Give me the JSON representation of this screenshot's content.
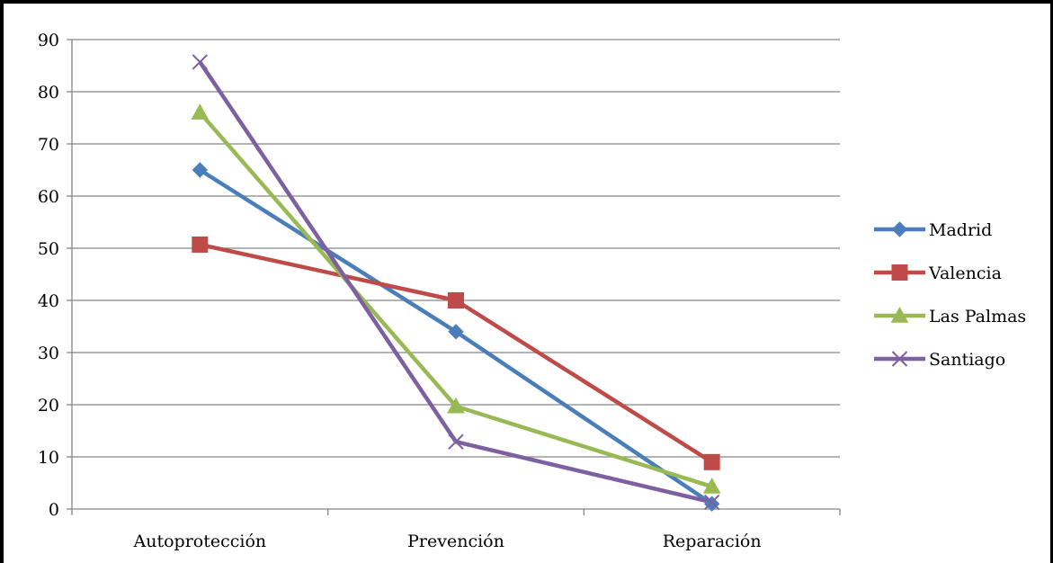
{
  "chart_data": {
    "type": "line",
    "title": "",
    "xlabel": "",
    "ylabel": "",
    "categories": [
      "Autoprotección",
      "Prevención",
      "Reparación"
    ],
    "ylim": [
      0,
      90
    ],
    "yticks": [
      0,
      10,
      20,
      30,
      40,
      50,
      60,
      70,
      80,
      90
    ],
    "grid": true,
    "legend_position": "right",
    "series": [
      {
        "name": "Madrid",
        "values": [
          65,
          34,
          1
        ],
        "color": "#4a7ebb",
        "marker": "diamond"
      },
      {
        "name": "Valencia",
        "values": [
          50.7,
          40,
          9
        ],
        "color": "#be4b48",
        "marker": "square"
      },
      {
        "name": "Las Palmas",
        "values": [
          76,
          19.7,
          4.3
        ],
        "color": "#98b954",
        "marker": "triangle"
      },
      {
        "name": "Santiago",
        "values": [
          85.7,
          12.9,
          1.3
        ],
        "color": "#7d60a0",
        "marker": "x"
      }
    ]
  }
}
